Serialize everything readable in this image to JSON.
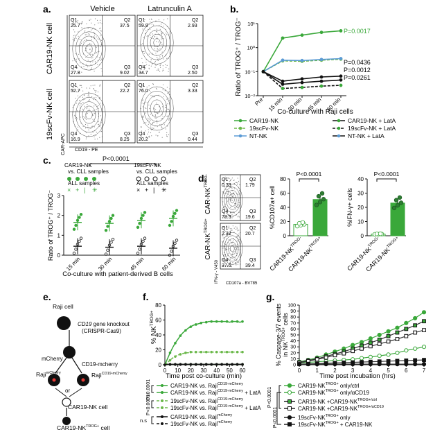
{
  "colors": {
    "car": "#3aa83a",
    "scfv": "#6bb84a",
    "nt": "#5b9bd5",
    "black": "#111111",
    "bar": "#3aa83a",
    "dot_dark": "#2e7d32"
  },
  "panel_a": {
    "letter": "a.",
    "col_titles": [
      "Vehicle",
      "Latrunculin A"
    ],
    "row_titles": [
      "CAR19-NK cell",
      "19scFv-NK cell"
    ],
    "y_axis": "CAR-APC",
    "x_axis": "CD19 - PE",
    "plots": [
      {
        "q1": "25.7",
        "q2": "37.5",
        "q3": "9.02",
        "q4": "27.8"
      },
      {
        "q1": "59.9",
        "q2": "2.93",
        "q3": "2.50",
        "q4": "34.7"
      },
      {
        "q1": "52.7",
        "q2": "22.2",
        "q3": "8.25",
        "q4": "16.9"
      },
      {
        "q1": "76.0",
        "q2": "3.33",
        "q3": "0.44",
        "q4": "20.2"
      }
    ]
  },
  "panel_b": {
    "letter": "b.",
    "ylabel": "Ratio of TROG⁺ / TROG⁻",
    "xlabel": "Co-culture with Raji cells",
    "pvalues": [
      "P=0.0017",
      "P=0.0436",
      "P=0.0012",
      "P=0.0261"
    ],
    "legend": [
      "CAR19-NK",
      "19scFv-NK",
      "NT-NK",
      "CAR19-NK + LatA",
      "19scFv-NK + LatA",
      "NT-NK + LatA"
    ]
  },
  "panel_c": {
    "letter": "c.",
    "pvalue": "P<0.0001",
    "group1": "CAR19-NK",
    "group2": "19scFv-NK",
    "vs_label": "vs. CLL samples",
    "all_label": "ALL samples",
    "ylabel": "Ratio of TROG⁺ / TROG⁻",
    "xlabel": "Co-culture with patient-derived B cells"
  },
  "panel_d": {
    "letter": "d.",
    "row_labels": [
      "CAR-NK^TROG-",
      "CAR-NK^TROG+"
    ],
    "y_axis": "IFN-γ - V450",
    "x_axis": "CD107a - BV785",
    "plots": [
      {
        "q1": "0.33",
        "q2": "1.79",
        "q3": "19.6",
        "q4": "78.3"
      },
      {
        "q1": "2.32",
        "q2": "20.7",
        "q3": "39.4",
        "q4": "37.5"
      }
    ],
    "bar_charts": [
      {
        "ylabel": "%CD107a+ cell",
        "pvalue": "P<0.0001",
        "categories": [
          "CAR19-NK^TROG-",
          "CAR19-NK^TROG+"
        ],
        "values": [
          16,
          51
        ],
        "ylim": [
          0,
          80
        ]
      },
      {
        "ylabel": "%IFN-γ+ cells",
        "pvalue": "P<0.0001",
        "categories": [
          "CAR19-NK^TROG-",
          "CAR19-NK^TROG+"
        ],
        "values": [
          1.2,
          23
        ],
        "ylim": [
          0,
          40
        ]
      }
    ]
  },
  "panel_e": {
    "letter": "e.",
    "labels": {
      "raji": "Raji cell",
      "ko1": "CD19 gene knockout",
      "ko2": "(CRISPR-Cas9)",
      "mcherry": "mCherry",
      "cd19mcherry": "CD19-mcherry",
      "rajimc": "Raji^mCherry",
      "rajicd": "Raji^CD19-mCherry",
      "or": "or",
      "carnk": "CAR19-NK cell",
      "cartrog": "CAR19-NK^TROG+ cell"
    }
  },
  "panel_f": {
    "letter": "f.",
    "ylabel": "% NK^TROG+",
    "xlabel": "Time post co-culture (min)",
    "stats": [
      "P<0.0001",
      "P<0.0001",
      "n.s"
    ],
    "legend": [
      "CAR19-NK vs. Raji^CD19-mCherry",
      "CAR19-NK vs. Raji^CD19-mCherry + LatA",
      "19scFv-NK vs. Raji^CD19-mCherry",
      "19scFv-NK vs. Raji^CD19-mCherry + LatA",
      "CAR19-NK vs. Raji^mCherry",
      "19scFv-NK vs. Raji^mCherry"
    ]
  },
  "panel_g": {
    "letter": "g.",
    "ylabel": "% Caspase-3/7 events in NK^TROG+ cells",
    "xlabel": "Time post incubation (hrs)",
    "stats": [
      "P<0.0001",
      "P<0.0001"
    ],
    "legend": [
      "CAR19-NK^TROG+ only/ctrl",
      "CAR19-NK^TROG+ only/αCD19",
      "CAR19-NK +CAR19-NK^TROG+/ctrl",
      "CAR19-NK +CAR19-NK^TROG+/αCD19",
      "19scFv-NK^TROG+ only",
      "19scFv-NK^TROG+ + CAR19-NK"
    ]
  },
  "chart_data": [
    {
      "type": "line",
      "panel": "b",
      "x": [
        "Pre",
        "15 min",
        "30 min",
        "45 min",
        "60 min"
      ],
      "ylabel": "Ratio of TROG⁺ / TROG⁻",
      "xlabel": "Co-culture with Raji cells",
      "yscale": "log",
      "ylim": [
        0.01,
        10
      ],
      "yticks": [
        "10⁻²",
        "10⁻¹",
        "10⁰",
        "10¹"
      ],
      "series": [
        {
          "name": "CAR19-NK",
          "values": [
            0.1,
            2.5,
            3.3,
            4.3,
            5.0
          ]
        },
        {
          "name": "19scFv-NK",
          "values": [
            0.1,
            0.28,
            0.27,
            0.3,
            0.33
          ]
        },
        {
          "name": "NT-NK",
          "values": [
            0.1,
            0.3,
            0.29,
            0.32,
            0.35
          ]
        },
        {
          "name": "CAR19-NK + LatA",
          "values": [
            0.1,
            0.04,
            0.05,
            0.06,
            0.065
          ]
        },
        {
          "name": "19scFv-NK + LatA",
          "values": [
            0.1,
            0.02,
            0.022,
            0.025,
            0.027
          ]
        },
        {
          "name": "NT-NK + LatA",
          "values": [
            0.1,
            0.03,
            0.035,
            0.04,
            0.045
          ]
        }
      ]
    },
    {
      "type": "scatter",
      "panel": "c",
      "x": [
        "15 min",
        "30 min",
        "45 min",
        "60 min"
      ],
      "ylabel": "Ratio of TROG⁺ / TROG⁻",
      "xlabel": "Co-culture with patient-derived B cells",
      "ylim": [
        0,
        3
      ],
      "yticks": [
        "0",
        "1",
        "2",
        "3"
      ],
      "series": [
        {
          "name": "CAR19-NK",
          "values": [
            1.65,
            1.6,
            1.75,
            1.85
          ]
        },
        {
          "name": "19scFv-NK",
          "values": [
            0.45,
            0.4,
            0.45,
            0.35
          ]
        }
      ]
    },
    {
      "type": "bar",
      "panel": "d-left",
      "categories": [
        "CAR19-NK^TROG-",
        "CAR19-NK^TROG+"
      ],
      "values": [
        16,
        51
      ],
      "ylabel": "%CD107a+ cell",
      "ylim": [
        0,
        80
      ],
      "yticks": [
        "0",
        "20",
        "40",
        "60",
        "80"
      ]
    },
    {
      "type": "bar",
      "panel": "d-right",
      "categories": [
        "CAR19-NK^TROG-",
        "CAR19-NK^TROG+"
      ],
      "values": [
        1.2,
        23
      ],
      "ylabel": "%IFN-γ+ cells",
      "ylim": [
        0,
        40
      ],
      "yticks": [
        "0",
        "10",
        "20",
        "30",
        "40"
      ]
    },
    {
      "type": "line",
      "panel": "f",
      "x": [
        0,
        2,
        4,
        6,
        8,
        10,
        12,
        14,
        16,
        18,
        20,
        22,
        24,
        26,
        28,
        30,
        32,
        34,
        36,
        38,
        40,
        42,
        44,
        46,
        48,
        50,
        52,
        54,
        56,
        58,
        60
      ],
      "xticks": [
        "0",
        "10",
        "20",
        "30",
        "40",
        "50",
        "60"
      ],
      "ylabel": "% NK^TROG+",
      "xlabel": "Time post co-culture (min)",
      "ylim": [
        0,
        80
      ],
      "yticks": [
        "0",
        "20",
        "40",
        "60",
        "80"
      ],
      "series": [
        {
          "name": "CAR19-NK vs. Raji^CD19-mCherry",
          "values": [
            0,
            8,
            16,
            23,
            29,
            34,
            39,
            43,
            46,
            49,
            51,
            53,
            54,
            55,
            56,
            57,
            57,
            58,
            58,
            58,
            58,
            58,
            58,
            58,
            58,
            57,
            58,
            58,
            58,
            57,
            58
          ]
        },
        {
          "name": "CAR19-NK vs. Raji^CD19-mCherry + LatA",
          "values": [
            0,
            0.5,
            0.5,
            0.5,
            0.5,
            0.5,
            0.5,
            0.5,
            0.5,
            0.5,
            0.5,
            0.5,
            0.5,
            0.5,
            0.5,
            0.5,
            0.5,
            0.5,
            0.5,
            0.5,
            0.5,
            0.5,
            0.5,
            0.5,
            0.5,
            0.5,
            0.5,
            0.5,
            0.5,
            0.5,
            0.5
          ]
        },
        {
          "name": "19scFv-NK vs. Raji^CD19-mCherry",
          "values": [
            0,
            3,
            6,
            9,
            11,
            13,
            14,
            15,
            16,
            16,
            17,
            17,
            17,
            17,
            17,
            17,
            17,
            17,
            17,
            17,
            17,
            17,
            17,
            17,
            17,
            17,
            17,
            17,
            17,
            17,
            17
          ]
        },
        {
          "name": "19scFv-NK vs. Raji^CD19-mCherry + LatA",
          "values": [
            0,
            0.3,
            0.3,
            0.3,
            0.3,
            0.3,
            0.3,
            0.3,
            0.3,
            0.3,
            0.3,
            0.3,
            0.3,
            0.3,
            0.3,
            0.3,
            0.3,
            0.3,
            0.3,
            0.3,
            0.3,
            0.3,
            0.3,
            0.3,
            0.3,
            0.3,
            0.3,
            0.3,
            0.3,
            0.3,
            0.3
          ]
        },
        {
          "name": "CAR19-NK vs. Raji^mCherry",
          "values": [
            0,
            0.6,
            0.6,
            0.6,
            0.6,
            0.6,
            0.6,
            0.6,
            0.6,
            0.6,
            0.6,
            0.6,
            0.6,
            0.6,
            0.6,
            0.6,
            0.6,
            0.6,
            0.6,
            0.6,
            0.6,
            0.6,
            0.6,
            0.6,
            0.6,
            0.6,
            0.6,
            0.6,
            0.6,
            0.6,
            0.6
          ]
        },
        {
          "name": "19scFv-NK vs. Raji^mCherry",
          "values": [
            0,
            0.2,
            0.2,
            0.2,
            0.2,
            0.2,
            0.2,
            0.2,
            0.2,
            0.2,
            0.2,
            0.2,
            0.2,
            0.2,
            0.2,
            0.2,
            0.2,
            0.2,
            0.2,
            0.2,
            0.2,
            0.2,
            0.2,
            0.2,
            0.2,
            0.2,
            0.2,
            0.2,
            0.2,
            0.2,
            0.2
          ]
        }
      ]
    },
    {
      "type": "line",
      "panel": "g",
      "x": [
        0,
        0.5,
        1,
        1.5,
        2,
        2.5,
        3,
        3.5,
        4,
        4.5,
        5,
        5.5,
        6,
        6.5,
        7
      ],
      "xticks": [
        "0",
        "1",
        "2",
        "3",
        "4",
        "5",
        "6",
        "7"
      ],
      "ylabel": "% Caspase-3/7 events in NK^TROG+ cells",
      "xlabel": "Time post incubation (hrs)",
      "ylim": [
        0,
        100
      ],
      "yticks": [
        "0",
        "10",
        "20",
        "30",
        "40",
        "50",
        "60",
        "70",
        "80",
        "90",
        "100"
      ],
      "series": [
        {
          "name": "CAR19-NK^TROG+ only/ctrl",
          "values": [
            5,
            8,
            12,
            17,
            22,
            27,
            33,
            38,
            44,
            50,
            56,
            62,
            70,
            78,
            88
          ]
        },
        {
          "name": "CAR19-NK^TROG+ only/αCD19",
          "values": [
            3,
            4,
            5,
            6,
            7,
            8,
            9,
            11,
            13,
            15,
            17,
            20,
            24,
            27,
            30
          ]
        },
        {
          "name": "CAR19-NK +CAR19-NK^TROG+/ctrl",
          "values": [
            4,
            7,
            10,
            14,
            18,
            22,
            27,
            32,
            37,
            42,
            48,
            54,
            60,
            66,
            73
          ]
        },
        {
          "name": "CAR19-NK +CAR19-NK^TROG+/αCD19",
          "values": [
            3,
            6,
            9,
            12,
            16,
            19,
            23,
            27,
            31,
            35,
            39,
            43,
            48,
            54,
            58
          ]
        },
        {
          "name": "19scFv-NK^TROG+ only",
          "values": [
            1,
            1,
            1,
            1,
            1,
            1,
            1,
            1,
            1,
            1,
            1,
            1,
            1,
            1,
            1
          ]
        },
        {
          "name": "19scFv-NK^TROG+ + CAR19-NK",
          "values": [
            1,
            1.5,
            2,
            2.5,
            3,
            3.5,
            4,
            4.5,
            5,
            5.5,
            6,
            6.5,
            7,
            7.5,
            8
          ]
        }
      ]
    }
  ]
}
